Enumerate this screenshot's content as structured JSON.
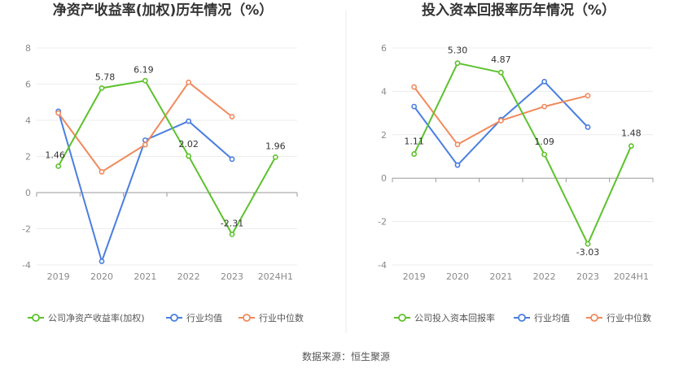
{
  "chart_data": [
    {
      "type": "line",
      "title": "净资产收益率(加权)历年情况（%）",
      "categories": [
        "2019",
        "2020",
        "2021",
        "2022",
        "2023",
        "2024H1"
      ],
      "ylim": [
        -4,
        8
      ],
      "yticks": [
        -4,
        -2,
        0,
        2,
        4,
        6,
        8
      ],
      "grid": true,
      "legend_position": "bottom",
      "series": [
        {
          "name": "公司净资产收益率(加权)",
          "color": "#5cc22c",
          "values": [
            1.46,
            5.78,
            6.19,
            2.02,
            -2.31,
            1.96
          ],
          "labels": [
            "1.46",
            "5.78",
            "6.19",
            "2.02",
            "-2.31",
            "1.96"
          ]
        },
        {
          "name": "行业均值",
          "color": "#4a7ee0",
          "values": [
            4.5,
            -3.8,
            2.9,
            3.95,
            1.85,
            null
          ]
        },
        {
          "name": "行业中位数",
          "color": "#f08a5d",
          "values": [
            4.4,
            1.15,
            2.65,
            6.1,
            4.2,
            null
          ]
        }
      ]
    },
    {
      "type": "line",
      "title": "投入资本回报率历年情况（%）",
      "categories": [
        "2019",
        "2020",
        "2021",
        "2022",
        "2023",
        "2024H1"
      ],
      "ylim": [
        -4,
        6
      ],
      "yticks": [
        -4,
        -2,
        0,
        2,
        4,
        6
      ],
      "grid": true,
      "legend_position": "bottom",
      "series": [
        {
          "name": "公司投入资本回报率",
          "color": "#5cc22c",
          "values": [
            1.11,
            5.3,
            4.87,
            1.09,
            -3.03,
            1.48
          ],
          "labels": [
            "1.11",
            "5.30",
            "4.87",
            "1.09",
            "-3.03",
            "1.48"
          ]
        },
        {
          "name": "行业均值",
          "color": "#4a7ee0",
          "values": [
            3.3,
            0.6,
            2.7,
            4.45,
            2.35,
            null
          ]
        },
        {
          "name": "行业中位数",
          "color": "#f08a5d",
          "values": [
            4.2,
            1.55,
            2.65,
            3.3,
            3.8,
            null
          ]
        }
      ]
    }
  ],
  "footer": {
    "source": "数据来源：恒生聚源"
  }
}
